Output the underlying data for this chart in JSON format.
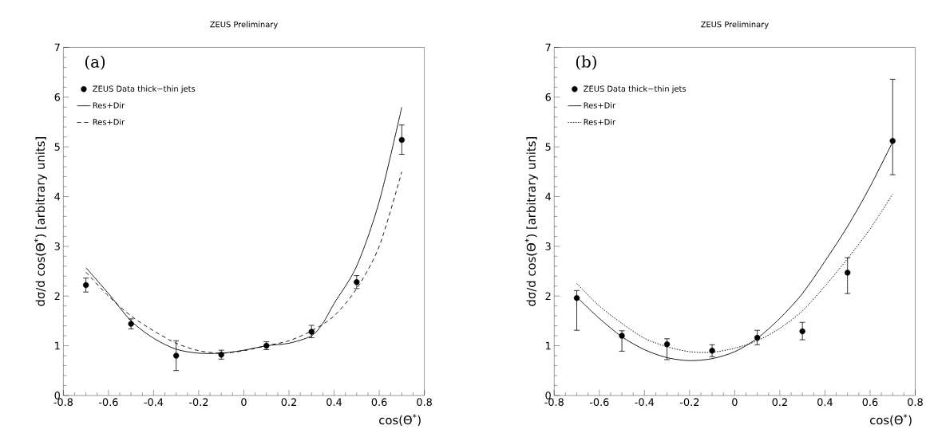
{
  "chart_data": [
    {
      "type": "line",
      "title": "ZEUS Preliminary",
      "xlabel": "cos(Θ$^{*}$)",
      "ylabel": "dσ/d cos(Θ$^{*}$)  [arbitrary units]",
      "annotations": [
        "(a)"
      ],
      "xlim": [
        -0.8,
        0.8
      ],
      "ylim": [
        0,
        7
      ],
      "xticks": [
        -0.8,
        -0.6,
        -0.4,
        -0.2,
        0,
        0.2,
        0.4,
        0.6,
        0.8
      ],
      "yticks": [
        0,
        1,
        2,
        3,
        4,
        5,
        6,
        7
      ],
      "grid": false,
      "legend": "top left",
      "series": [
        {
          "name": "ZEUS Data thick−thin jets",
          "type": "scatter",
          "color": "#000000",
          "x": [
            -0.7,
            -0.5,
            -0.3,
            -0.1,
            0.1,
            0.3,
            0.5,
            0.7
          ],
          "values": [
            2.22,
            1.44,
            0.8,
            0.82,
            1.0,
            1.28,
            2.28,
            5.14
          ],
          "errors": [
            [
              2.08,
              2.36
            ],
            [
              1.34,
              1.54
            ],
            [
              0.5,
              1.1
            ],
            [
              0.73,
              0.91
            ],
            [
              0.92,
              1.08
            ],
            [
              1.16,
              1.41
            ],
            [
              2.15,
              2.41
            ],
            [
              4.85,
              5.44
            ]
          ]
        },
        {
          "name": "Res+Dir",
          "line_style": "solid",
          "color": "#000000",
          "x": [
            -0.7,
            -0.6,
            -0.5,
            -0.4,
            -0.3,
            -0.2,
            -0.1,
            0,
            0.1,
            0.2,
            0.3,
            0.35,
            0.4,
            0.5,
            0.6,
            0.7
          ],
          "values": [
            2.57,
            2.05,
            1.5,
            1.15,
            0.93,
            0.85,
            0.85,
            0.91,
            1.0,
            1.05,
            1.2,
            1.45,
            1.85,
            2.6,
            3.9,
            5.8
          ]
        },
        {
          "name": "Res+Dir",
          "line_style": "dashed",
          "color": "#000000",
          "x": [
            -0.7,
            -0.6,
            -0.5,
            -0.4,
            -0.3,
            -0.2,
            -0.1,
            0,
            0.1,
            0.2,
            0.3,
            0.4,
            0.5,
            0.6,
            0.7
          ],
          "values": [
            2.48,
            2.0,
            1.6,
            1.3,
            1.05,
            0.9,
            0.85,
            0.9,
            1.0,
            1.1,
            1.3,
            1.6,
            2.15,
            3.0,
            4.5
          ]
        }
      ]
    },
    {
      "type": "line",
      "title": "ZEUS Preliminary",
      "xlabel": "cos(Θ$^{*}$)",
      "ylabel": "dσ/d cos(Θ$^{*}$)  [arbitrary units]",
      "annotations": [
        "(b)"
      ],
      "xlim": [
        -0.8,
        0.8
      ],
      "ylim": [
        0,
        7
      ],
      "xticks": [
        -0.8,
        -0.6,
        -0.4,
        -0.2,
        0,
        0.2,
        0.4,
        0.6,
        0.8
      ],
      "yticks": [
        0,
        1,
        2,
        3,
        4,
        5,
        6,
        7
      ],
      "grid": false,
      "legend": "top left",
      "series": [
        {
          "name": "ZEUS Data thick−thin jets",
          "type": "scatter",
          "color": "#000000",
          "x": [
            -0.7,
            -0.5,
            -0.3,
            -0.1,
            0.1,
            0.3,
            0.5,
            0.7
          ],
          "values": [
            1.96,
            1.2,
            1.03,
            0.9,
            1.16,
            1.29,
            2.47,
            5.12
          ],
          "errors": [
            [
              1.31,
              2.11
            ],
            [
              0.89,
              1.3
            ],
            [
              0.72,
              1.14
            ],
            [
              0.78,
              1.02
            ],
            [
              1.02,
              1.31
            ],
            [
              1.12,
              1.47
            ],
            [
              2.05,
              2.77
            ],
            [
              4.44,
              6.36
            ]
          ]
        },
        {
          "name": "Res+Dir",
          "line_style": "solid",
          "color": "#000000",
          "x": [
            -0.7,
            -0.6,
            -0.5,
            -0.4,
            -0.3,
            -0.2,
            -0.1,
            0,
            0.1,
            0.2,
            0.3,
            0.4,
            0.5,
            0.6,
            0.7
          ],
          "values": [
            1.98,
            1.55,
            1.18,
            0.92,
            0.76,
            0.7,
            0.74,
            0.88,
            1.15,
            1.55,
            2.05,
            2.7,
            3.4,
            4.2,
            5.1
          ]
        },
        {
          "name": "Res+Dir",
          "line_style": "dotted",
          "color": "#000000",
          "x": [
            -0.7,
            -0.6,
            -0.5,
            -0.4,
            -0.3,
            -0.2,
            -0.1,
            0,
            0.1,
            0.2,
            0.3,
            0.4,
            0.5,
            0.6,
            0.7
          ],
          "values": [
            2.25,
            1.8,
            1.45,
            1.15,
            0.98,
            0.88,
            0.87,
            0.95,
            1.1,
            1.35,
            1.7,
            2.2,
            2.75,
            3.35,
            4.05
          ]
        }
      ]
    }
  ]
}
